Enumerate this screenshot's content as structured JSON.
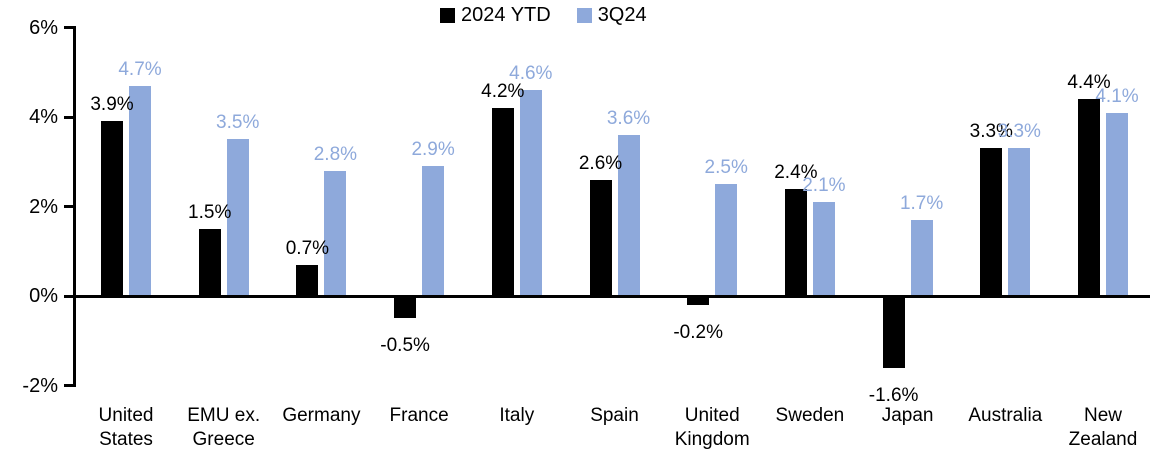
{
  "chart_data": {
    "type": "bar",
    "title": "",
    "xlabel": "",
    "ylabel": "",
    "legend_position": "top-center",
    "grid": false,
    "axis_color": "#000000",
    "categories": [
      "United\nStates",
      "EMU ex.\nGreece",
      "Germany",
      "France",
      "Italy",
      "Spain",
      "United\nKingdom",
      "Sweden",
      "Japan",
      "Australia",
      "New\nZealand"
    ],
    "series": [
      {
        "name": "2024 YTD",
        "color": "#000000",
        "values": [
          3.9,
          1.5,
          0.7,
          -0.5,
          4.2,
          2.6,
          -0.2,
          2.4,
          -1.6,
          3.3,
          4.4
        ],
        "labels": [
          "3.9%",
          "1.5%",
          "0.7%",
          "-0.5%",
          "4.2%",
          "2.6%",
          "-0.2%",
          "2.4%",
          "-1.6%",
          "3.3%",
          "4.4%"
        ]
      },
      {
        "name": "3Q24",
        "color": "#8EA9DB",
        "values": [
          4.7,
          3.5,
          2.8,
          2.9,
          4.6,
          3.6,
          2.5,
          2.1,
          1.7,
          3.3,
          4.1
        ],
        "labels": [
          "4.7%",
          "3.5%",
          "2.8%",
          "2.9%",
          "4.6%",
          "3.6%",
          "2.5%",
          "2.1%",
          "1.7%",
          "3.3%",
          "4.1%"
        ]
      }
    ],
    "y_axis": {
      "min": -2,
      "max": 6,
      "step": 2,
      "tick_labels": [
        "6%",
        "4%",
        "2%",
        "0%",
        "-2%"
      ]
    }
  }
}
